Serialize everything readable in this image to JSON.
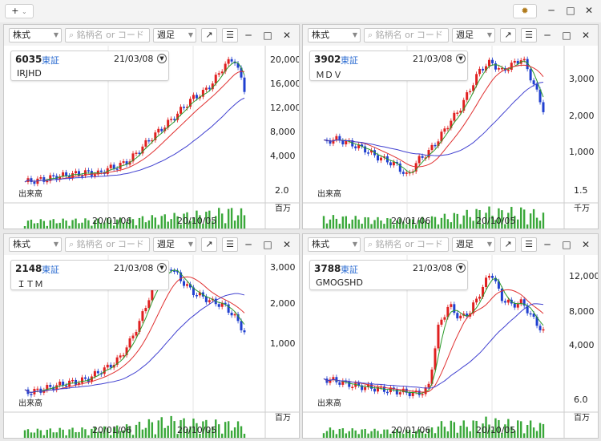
{
  "toolbar": {
    "add_label": "+",
    "add_dropdown": "⌄",
    "settings_icon": "gear-icon",
    "minimize": "─",
    "maximize": "□",
    "close": "✕"
  },
  "panels": [
    {
      "type_label": "株式",
      "search_placeholder": "銘柄名 or コード",
      "period_label": "週足",
      "code": "6035",
      "exchange": "東証",
      "date": "21/03/08",
      "name": "IRJHD",
      "volume_label": "出来高",
      "volume_top": "2.0",
      "volume_unit": "百万",
      "x_ticks": [
        "20/01/06",
        "20/10/05"
      ],
      "y_ticks": [
        "20,000",
        "16,000",
        "12,000",
        "8,000",
        "4,000"
      ]
    },
    {
      "type_label": "株式",
      "search_placeholder": "銘柄名 or コード",
      "period_label": "週足",
      "code": "3902",
      "exchange": "東証",
      "date": "21/03/08",
      "name": "ＭＤＶ",
      "volume_label": "出来高",
      "volume_top": "1.5",
      "volume_unit": "千万",
      "x_ticks": [
        "20/01/06",
        "20/10/05"
      ],
      "y_ticks": [
        "3,000",
        "2,000",
        "1,000"
      ]
    },
    {
      "type_label": "株式",
      "search_placeholder": "銘柄名 or コード",
      "period_label": "週足",
      "code": "2148",
      "exchange": "東証",
      "date": "21/03/08",
      "name": "ＩＴＭ",
      "volume_label": "出来高",
      "volume_top": "",
      "volume_unit": "百万",
      "x_ticks": [
        "20/01/06",
        "20/10/05"
      ],
      "y_ticks": [
        "3,000",
        "2,000",
        "1,000"
      ]
    },
    {
      "type_label": "株式",
      "search_placeholder": "銘柄名 or コード",
      "period_label": "週足",
      "code": "3788",
      "exchange": "東証",
      "date": "21/03/08",
      "name": "GMOGSHD",
      "volume_label": "出来高",
      "volume_top": "6.0",
      "volume_unit": "百万",
      "x_ticks": [
        "20/01/06",
        "20/10/05"
      ],
      "y_ticks": [
        "12,000",
        "8,000",
        "4,000"
      ]
    }
  ],
  "colors": {
    "up": "#e02020",
    "down": "#2040d0",
    "ma_short": "#2a9a2a",
    "ma_mid": "#e03030",
    "ma_long": "#4040d0",
    "volume": "#3aa83a"
  }
}
